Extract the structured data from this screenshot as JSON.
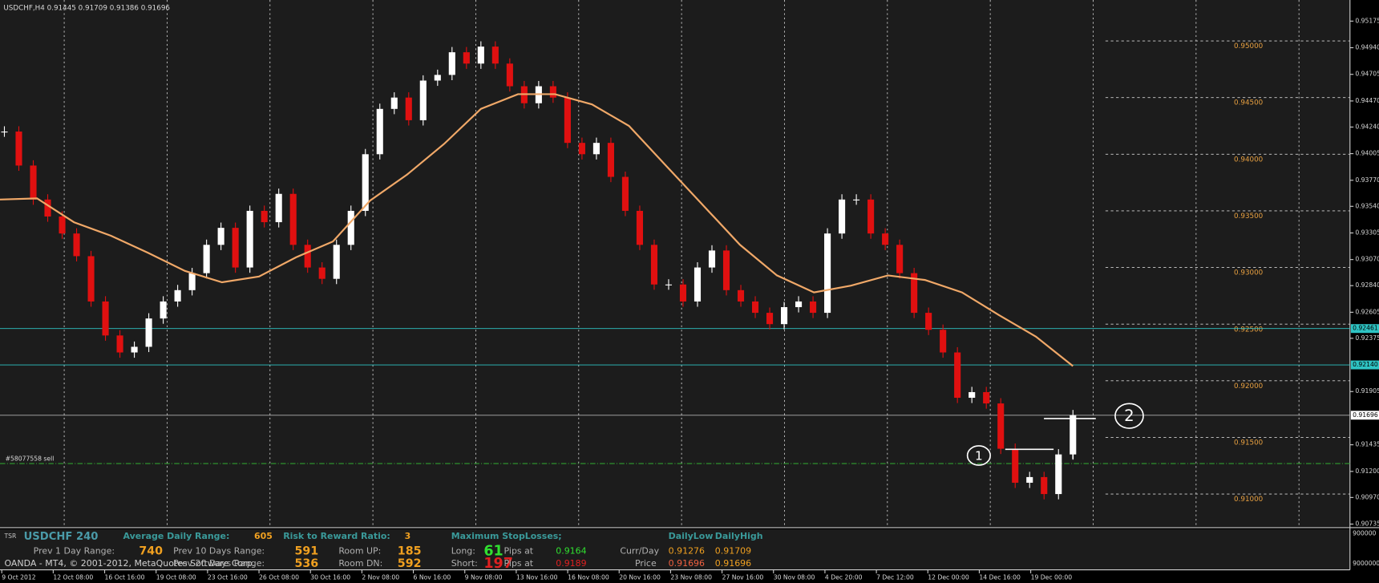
{
  "header": "USDCHF,H4  0.91445 0.91709 0.91386 0.91696",
  "price_ticks": [
    0.95175,
    {
      "value": 0.9494,
      "label": "0.94940"
    },
    0.94705,
    {
      "value": 0.9447,
      "label": "0.94470"
    },
    {
      "value": 0.9424,
      "label": "0.94240"
    },
    0.94005,
    {
      "value": 0.9377,
      "label": "0.93770"
    },
    {
      "value": 0.9354,
      "label": "0.93540"
    },
    0.93305,
    {
      "value": 0.9307,
      "label": "0.93070"
    },
    {
      "value": 0.9284,
      "label": "0.92840"
    },
    0.92605,
    0.92375,
    0.91905,
    0.91435,
    {
      "value": 0.912,
      "label": "0.91200"
    },
    {
      "value": 0.9097,
      "label": "0.90970"
    },
    0.90735
  ],
  "levels": [
    {
      "value": 0.95,
      "label": "0.95000"
    },
    {
      "value": 0.945,
      "label": "0.94500"
    },
    {
      "value": 0.94,
      "label": "0.94000"
    },
    {
      "value": 0.935,
      "label": "0.93500"
    },
    {
      "value": 0.93,
      "label": "0.93000"
    },
    {
      "value": 0.925,
      "label": "0.92500"
    },
    {
      "value": 0.92,
      "label": "0.92000"
    },
    {
      "value": 0.915,
      "label": "0.91500"
    },
    {
      "value": 0.91,
      "label": "0.91000"
    }
  ],
  "level_color": "#e8a040",
  "highlighted": [
    {
      "value": 0.92461,
      "label": "0.92461",
      "color": "#2ec4c4"
    },
    {
      "value": 0.9214,
      "label": "0.92140",
      "color": "#2ec4c4"
    },
    {
      "value": 0.91696,
      "label": "0.91696",
      "color": "#b0b0b0"
    }
  ],
  "order": {
    "label": "#58077558 sell",
    "price": 0.91269,
    "color": "#30a030"
  },
  "time_labels": [
    "9 Oct 2012",
    "12 Oct 08:00",
    "16 Oct 16:00",
    "19 Oct 08:00",
    "23 Oct 16:00",
    "26 Oct 08:00",
    "30 Oct 16:00",
    "2 Nov 08:00",
    "6 Nov 16:00",
    "9 Nov 08:00",
    "13 Nov 16:00",
    "16 Nov 08:00",
    "20 Nov 16:00",
    "23 Nov 08:00",
    "27 Nov 16:00",
    "30 Nov 08:00",
    "4 Dec 20:00",
    "7 Dec 12:00",
    "12 Dec 00:00",
    "14 Dec 16:00",
    "19 Dec 00:00"
  ],
  "candles": [
    0.942,
    0.939,
    0.936,
    0.9345,
    0.933,
    0.931,
    0.927,
    0.924,
    0.9225,
    0.923,
    0.9255,
    0.927,
    0.928,
    0.9295,
    0.932,
    0.9335,
    0.93,
    0.935,
    0.934,
    0.9365,
    0.932,
    0.93,
    0.929,
    0.932,
    0.935,
    0.94,
    0.944,
    0.945,
    0.943,
    0.9465,
    0.947,
    0.949,
    0.948,
    0.9495,
    0.948,
    0.946,
    0.9445,
    0.946,
    0.945,
    0.941,
    0.94,
    0.941,
    0.938,
    0.935,
    0.932,
    0.9285,
    0.9285,
    0.927,
    0.93,
    0.9315,
    0.928,
    0.927,
    0.926,
    0.925,
    0.9265,
    0.927,
    0.926,
    0.933,
    0.936,
    0.936,
    0.933,
    0.932,
    0.9295,
    0.926,
    0.9245,
    0.9225,
    0.9185,
    0.919,
    0.918,
    0.914,
    0.911,
    0.9115,
    0.91,
    0.9135,
    0.91696
  ],
  "bull_color": "#ffffff",
  "bear_color": "#e01010",
  "moving_average": {
    "color": "#f0a868",
    "values": [
      0.936,
      0.9361,
      0.934,
      0.9328,
      0.9313,
      0.9297,
      0.9287,
      0.9292,
      0.9309,
      0.9323,
      0.9359,
      0.9382,
      0.9409,
      0.944,
      0.9453,
      0.9453,
      0.9444,
      0.9425,
      0.939,
      0.9355,
      0.932,
      0.9293,
      0.9278,
      0.9284,
      0.9293,
      0.9289,
      0.9278,
      0.9258,
      0.9239,
      0.9213
    ]
  },
  "annotations": [
    "1",
    "2"
  ],
  "panel": {
    "rows": [
      [
        {
          "text": "TSR",
          "color": "#c0c0c0"
        },
        {
          "text": "USDCHF 240",
          "color": "#4a9aa8"
        },
        {
          "text": "Average Daily Range:",
          "color": "#3a9a9a"
        },
        {
          "text": "605",
          "color": "#f0a020"
        },
        {
          "text": "Risk to Reward Ratio:",
          "color": "#3a9a9a"
        },
        {
          "text": "3",
          "color": "#f0a020"
        },
        {
          "text": "Maximum StopLosses;",
          "color": "#3a9a9a"
        },
        {
          "text": "DailyLow",
          "color": "#3a9a9a"
        },
        {
          "text": "DailyHigh",
          "color": "#3a9a9a"
        }
      ],
      [
        {
          "text": "Prev 1 Day Range:",
          "color": "#b0b0b0"
        },
        {
          "text": "740",
          "color": "#f0a020"
        },
        {
          "text": "Prev 10 Days Range:",
          "color": "#b0b0b0"
        },
        {
          "text": "591",
          "color": "#f0a020"
        },
        {
          "text": "Room UP:",
          "color": "#b0b0b0"
        },
        {
          "text": "185",
          "color": "#f0a020"
        },
        {
          "text": "Long:",
          "color": "#b0b0b0"
        },
        {
          "text": "61",
          "color": "#30e030"
        },
        {
          "text": "Pips at",
          "color": "#b0b0b0"
        },
        {
          "text": "0.9164",
          "color": "#30e030"
        },
        {
          "text": "Curr/Day",
          "color": "#b0b0b0"
        },
        {
          "text": "0.91276",
          "color": "#f0a020"
        },
        {
          "text": "0.91709",
          "color": "#f0a020"
        }
      ],
      [
        {
          "text": "OANDA - MT4, © 2001-2012, MetaQuotes Software Corp.",
          "color": "#d0d0d0"
        },
        {
          "text": "Prev 20 Days Range:",
          "color": "#b0b0b0"
        },
        {
          "text": "536",
          "color": "#f0a020"
        },
        {
          "text": "Room DN:",
          "color": "#b0b0b0"
        },
        {
          "text": "592",
          "color": "#f0a020"
        },
        {
          "text": "Short:",
          "color": "#b0b0b0"
        },
        {
          "text": "197",
          "color": "#e02020"
        },
        {
          "text": "Pips at",
          "color": "#b0b0b0"
        },
        {
          "text": "0.9189",
          "color": "#e02020"
        },
        {
          "text": "Price",
          "color": "#b0b0b0"
        },
        {
          "text": "0.91696",
          "color": "#f06040"
        },
        {
          "text": "0.91696",
          "color": "#f0a020"
        }
      ]
    ],
    "axis": [
      "900000",
      "9000000"
    ]
  }
}
